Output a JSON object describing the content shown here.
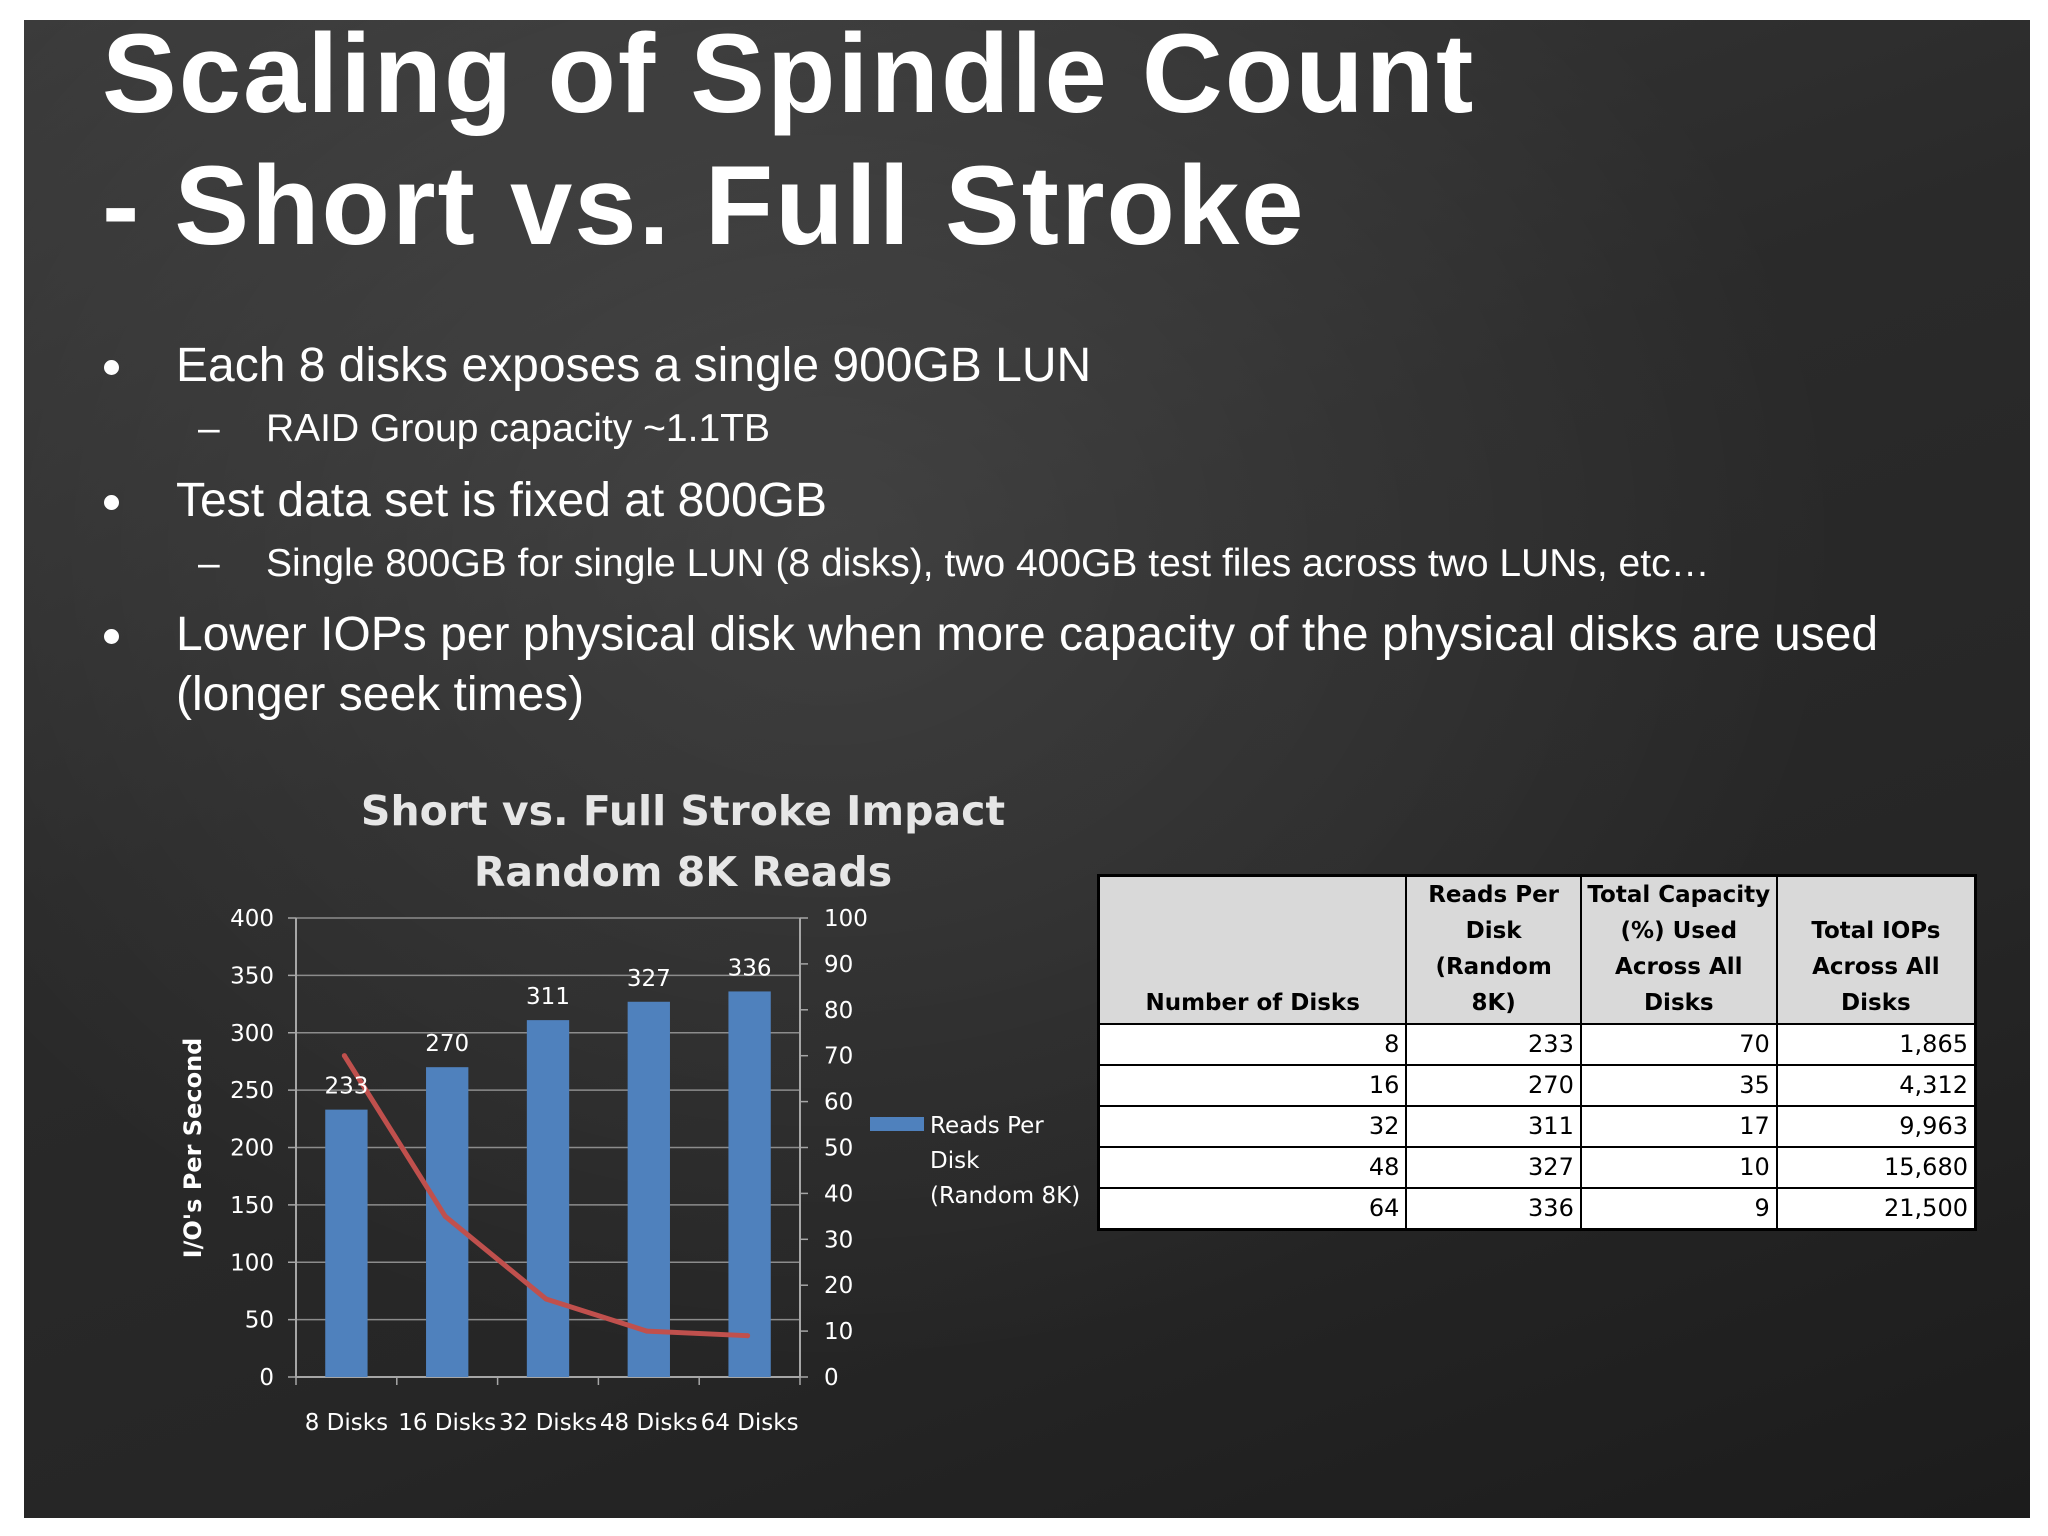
{
  "title": {
    "line1": "Scaling of Spindle Count",
    "line2": "- Short vs. Full Stroke"
  },
  "bullets": [
    {
      "text": "Each 8 disks exposes a single 900GB LUN",
      "subs": [
        "RAID Group capacity ~1.1TB"
      ]
    },
    {
      "text": "Test data set is fixed at 800GB",
      "subs": [
        "Single 800GB for single LUN (8 disks), two 400GB test files across two LUNs, etc…"
      ]
    },
    {
      "text": "Lower IOPs per physical disk when more capacity of the physical disks are used (longer seek times)",
      "subs": []
    }
  ],
  "sub_marker": "–",
  "chart_data": {
    "type": "bar",
    "title": "Short vs. Full Stroke Impact Random 8K Reads",
    "title_lines": [
      "Short vs. Full Stroke Impact",
      "Random 8K Reads"
    ],
    "categories": [
      "8 Disks",
      "16 Disks",
      "32 Disks",
      "48 Disks",
      "64 Disks"
    ],
    "ylabel": "I/O's Per Second",
    "ylim": [
      0,
      400
    ],
    "yticks": [
      0,
      50,
      100,
      150,
      200,
      250,
      300,
      350,
      400
    ],
    "y2lim": [
      0,
      100
    ],
    "y2ticks": [
      0,
      10,
      20,
      30,
      40,
      50,
      60,
      70,
      80,
      90,
      100
    ],
    "grid": true,
    "legend_position": "right",
    "series": [
      {
        "name": "Reads Per Disk (Random 8K)",
        "legend_lines": [
          "Reads Per",
          "Disk",
          "(Random 8K)"
        ],
        "kind": "bar",
        "axis": "left",
        "color": "#4f81bd",
        "values": [
          233,
          270,
          311,
          327,
          336
        ],
        "data_labels": true
      },
      {
        "kind": "line",
        "axis": "right",
        "color": "#c0504d",
        "values": [
          70,
          35,
          17,
          10,
          9
        ]
      }
    ]
  },
  "table": {
    "headers": [
      [
        "Number of Disks"
      ],
      [
        "Reads Per",
        "Disk (Random",
        "8K)"
      ],
      [
        "Total Capacity",
        "(%) Used",
        "Across All Disks"
      ],
      [
        "Total IOPs",
        "Across All Disks"
      ]
    ],
    "rows": [
      [
        "8",
        "233",
        "70",
        "1,865"
      ],
      [
        "16",
        "270",
        "35",
        "4,312"
      ],
      [
        "32",
        "311",
        "17",
        "9,963"
      ],
      [
        "48",
        "327",
        "10",
        "15,680"
      ],
      [
        "64",
        "336",
        "9",
        "21,500"
      ]
    ]
  },
  "colors": {
    "background": "#2b2b2b",
    "text": "#ffffff",
    "bar": "#4f81bd",
    "line": "#c0504d",
    "table_header": "#d9d9d9"
  }
}
